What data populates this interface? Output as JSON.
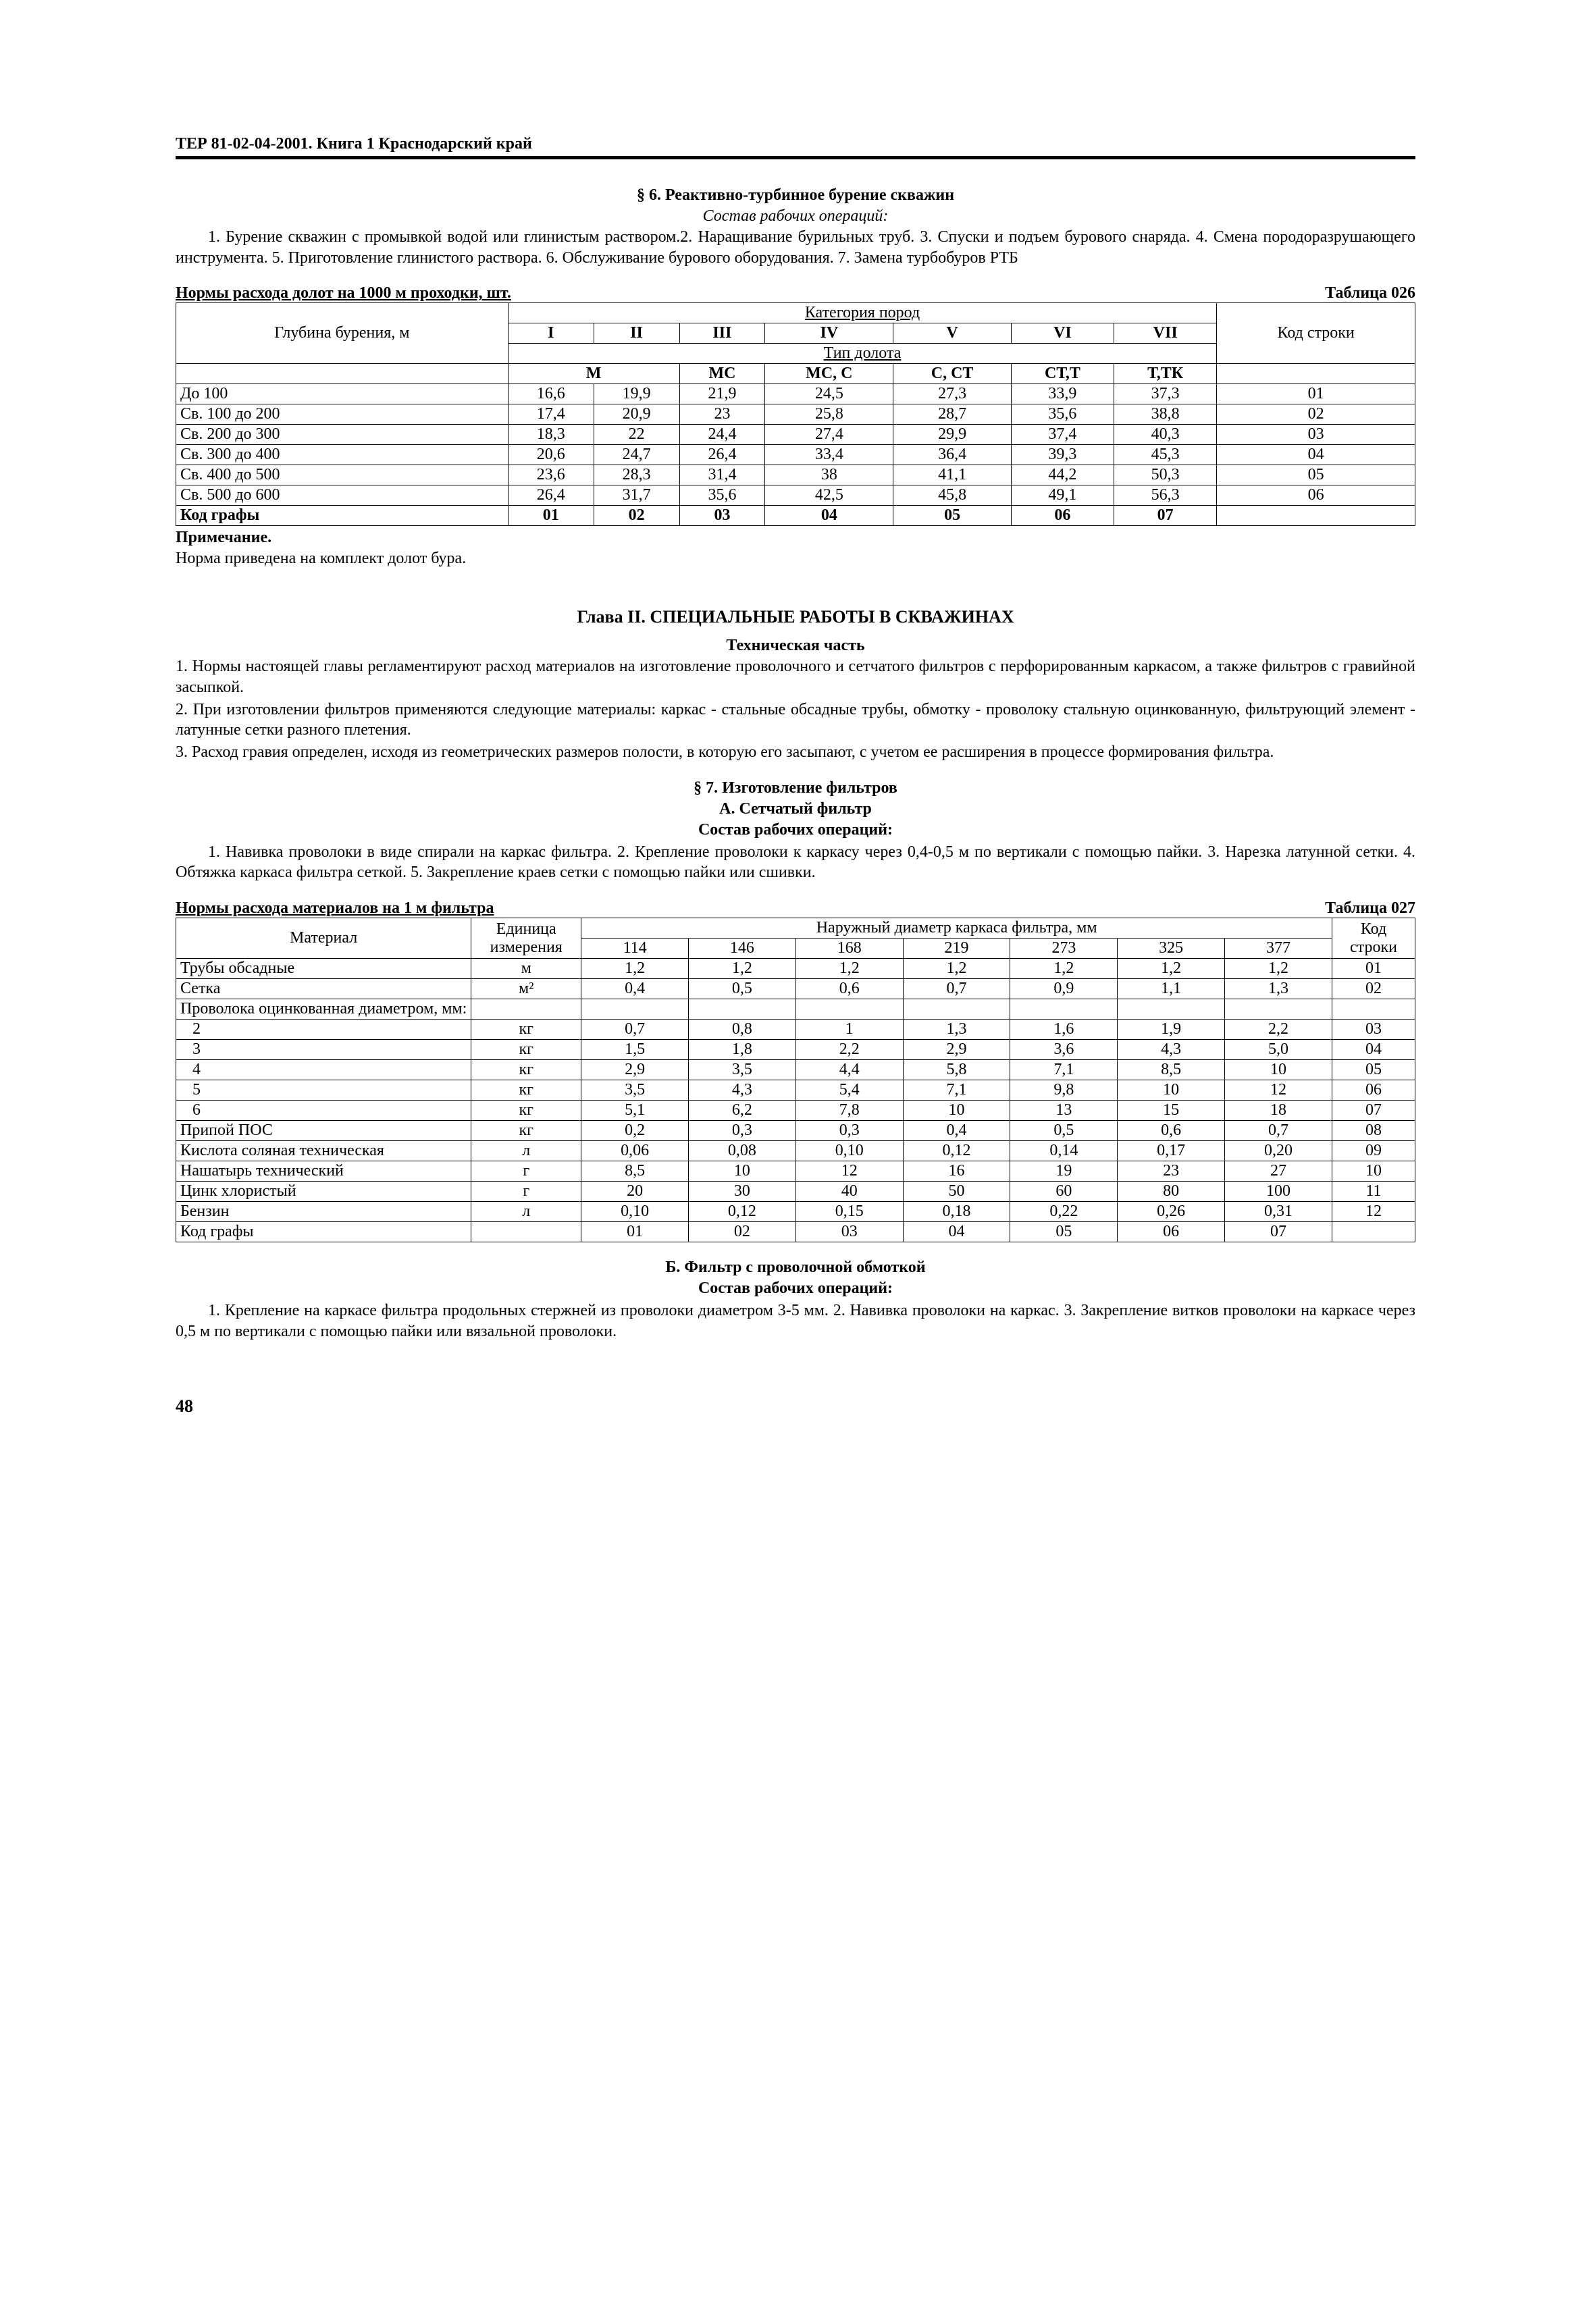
{
  "header": "ТЕР 81-02-04-2001. Книга 1   Краснодарский край",
  "sect6": {
    "title": "§ 6. Реактивно-турбинное бурение скважин",
    "sub": "Состав рабочих операций:",
    "para": "1. Бурение скважин с промывкой водой или глинистым раствором.2. Наращивание бурильных труб. 3. Спуски и подъем бурового снаряда. 4. Смена породоразрушающего инструмента. 5. Приготовление глинистого раствора. 6. Обслуживание бурового оборудования. 7. Замена турбобуров РТБ"
  },
  "tbl026": {
    "caption_left": "Нормы расхода долот на 1000 м проходки, шт.",
    "caption_right": "Таблица 026",
    "head": {
      "depth": "Глубина бурения, м",
      "cat": "Категория пород",
      "cols": [
        "I",
        "II",
        "III",
        "IV",
        "V",
        "VI",
        "VII"
      ],
      "tip": "Тип долота",
      "tips": [
        "М",
        "МС",
        "МС, С",
        "С, СТ",
        "СТ,Т",
        "Т,ТК"
      ],
      "code": "Код стро­ки"
    },
    "rows": [
      {
        "d": "До 100",
        "v": [
          "16,6",
          "19,9",
          "21,9",
          "24,5",
          "27,3",
          "33,9",
          "37,3"
        ],
        "k": "01"
      },
      {
        "d": "Св. 100 до 200",
        "v": [
          "17,4",
          "20,9",
          "23",
          "25,8",
          "28,7",
          "35,6",
          "38,8"
        ],
        "k": "02"
      },
      {
        "d": "Св. 200 до 300",
        "v": [
          "18,3",
          "22",
          "24,4",
          "27,4",
          "29,9",
          "37,4",
          "40,3"
        ],
        "k": "03"
      },
      {
        "d": "Св. 300 до 400",
        "v": [
          "20,6",
          "24,7",
          "26,4",
          "33,4",
          "36,4",
          "39,3",
          "45,3"
        ],
        "k": "04"
      },
      {
        "d": "Св. 400 до 500",
        "v": [
          "23,6",
          "28,3",
          "31,4",
          "38",
          "41,1",
          "44,2",
          "50,3"
        ],
        "k": "05"
      },
      {
        "d": "Св. 500 до 600",
        "v": [
          "26,4",
          "31,7",
          "35,6",
          "42,5",
          "45,8",
          "49,1",
          "56,3"
        ],
        "k": "06"
      }
    ],
    "foot": {
      "label": "Код графы",
      "v": [
        "01",
        "02",
        "03",
        "04",
        "05",
        "06",
        "07"
      ]
    },
    "note_head": "Примечание.",
    "note": "Норма приведена на комплект долот бура."
  },
  "chapter2": {
    "title": "Глава II. СПЕЦИАЛЬНЫЕ РАБОТЫ В СКВАЖИНАХ",
    "sub": "Техническая часть",
    "p1": "1. Нормы настоящей главы регламентируют расход материалов на изготовление проволочного и сетчатого фильтров с перфорированным каркасом, а также фильтров с гравийной засыпкой.",
    "p2": "2. При изготовлении фильтров применяются следующие материалы: каркас - стальные обсадные трубы, обмотку - проволоку стальную оцинкованную, фильтрующий элемент - латунные сетки разного плетения.",
    "p3": "3. Расход гравия определен, исходя из геометрических размеров полости, в которую его засыпают, с учетом ее рас­ширения в процессе формирования фильтра."
  },
  "sect7": {
    "title": "§ 7. Изготовление фильтров",
    "subA": "А. Сетчатый фильтр",
    "ops": "Состав рабочих операций:",
    "para": "1. Навивка проволоки в виде спирали на каркас фильтра. 2. Крепление проволоки к каркасу через 0,4-0,5 м по вертикали с помощью пайки. 3. Нарезка латунной сетки. 4. Обтяжка каркаса фильтра сеткой. 5. Закрепление краев сетки с помощью пайки или сшивки."
  },
  "tbl027": {
    "caption_left": "Нормы расхода материалов на 1 м фильтра",
    "caption_right": "Таблица 027",
    "head": {
      "mat": "Материал",
      "unit": "Единица измерения",
      "diam": "Наружный диаметр каркаса фильтра, мм",
      "cols": [
        "114",
        "146",
        "168",
        "219",
        "273",
        "325",
        "377"
      ],
      "code": "Код строки"
    },
    "rows": [
      {
        "m": "Трубы обсадные",
        "u": "м",
        "v": [
          "1,2",
          "1,2",
          "1,2",
          "1,2",
          "1,2",
          "1,2",
          "1,2"
        ],
        "k": "01"
      },
      {
        "m": "Сетка",
        "u": "м²",
        "v": [
          "0,4",
          "0,5",
          "0,6",
          "0,7",
          "0,9",
          "1,1",
          "1,3"
        ],
        "k": "02"
      },
      {
        "m": "Проволока оцинкованная диамет­ром, мм:",
        "u": "",
        "v": [
          "",
          "",
          "",
          "",
          "",
          "",
          ""
        ],
        "k": ""
      },
      {
        "m": "   2",
        "u": "кг",
        "v": [
          "0,7",
          "0,8",
          "1",
          "1,3",
          "1,6",
          "1,9",
          "2,2"
        ],
        "k": "03"
      },
      {
        "m": "   3",
        "u": "кг",
        "v": [
          "1,5",
          "1,8",
          "2,2",
          "2,9",
          "3,6",
          "4,3",
          "5,0"
        ],
        "k": "04"
      },
      {
        "m": "   4",
        "u": "кг",
        "v": [
          "2,9",
          "3,5",
          "4,4",
          "5,8",
          "7,1",
          "8,5",
          "10"
        ],
        "k": "05"
      },
      {
        "m": "   5",
        "u": "кг",
        "v": [
          "3,5",
          "4,3",
          "5,4",
          "7,1",
          "9,8",
          "10",
          "12"
        ],
        "k": "06"
      },
      {
        "m": "   6",
        "u": "кг",
        "v": [
          "5,1",
          "6,2",
          "7,8",
          "10",
          "13",
          "15",
          "18"
        ],
        "k": "07"
      },
      {
        "m": "Припой ПОС",
        "u": "кг",
        "v": [
          "0,2",
          "0,3",
          "0,3",
          "0,4",
          "0,5",
          "0,6",
          "0,7"
        ],
        "k": "08"
      },
      {
        "m": "Кислота соляная техническая",
        "u": "л",
        "v": [
          "0,06",
          "0,08",
          "0,10",
          "0,12",
          "0,14",
          "0,17",
          "0,20"
        ],
        "k": "09"
      },
      {
        "m": "Нашатырь технический",
        "u": "г",
        "v": [
          "8,5",
          "10",
          "12",
          "16",
          "19",
          "23",
          "27"
        ],
        "k": "10"
      },
      {
        "m": "Цинк хлористый",
        "u": "г",
        "v": [
          "20",
          "30",
          "40",
          "50",
          "60",
          "80",
          "100"
        ],
        "k": "11"
      },
      {
        "m": "Бензин",
        "u": "л",
        "v": [
          "0,10",
          "0,12",
          "0,15",
          "0,18",
          "0,22",
          "0,26",
          "0,31"
        ],
        "k": "12"
      }
    ],
    "foot": {
      "label": "Код графы",
      "v": [
        "01",
        "02",
        "03",
        "04",
        "05",
        "06",
        "07"
      ]
    }
  },
  "sectB": {
    "title": "Б. Фильтр с проволочной обмоткой",
    "ops": "Состав рабочих операций:",
    "para": "1. Крепление на каркасе фильтра продольных стержней из проволоки диаметром 3-5 мм. 2. Навивка проволоки на каркас. 3. Закрепление витков проволоки на каркасе через 0,5 м по вертикали с помощью пайки или вязальной проволоки."
  },
  "page": "48"
}
